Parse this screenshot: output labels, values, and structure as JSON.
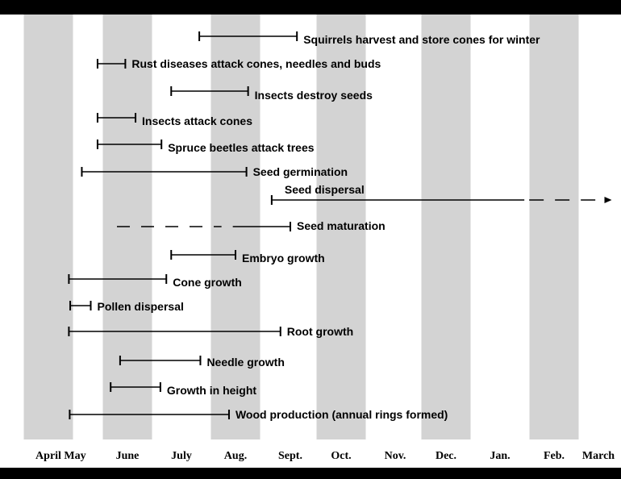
{
  "chart_data": {
    "type": "timeline",
    "title": "",
    "xlabel": "",
    "ylabel": "",
    "month_labels": [
      "April",
      "May",
      "June",
      "July",
      "Aug.",
      "Sept.",
      "Oct.",
      "Nov.",
      "Dec.",
      "Jan.",
      "Feb.",
      "March"
    ],
    "shaded_months": [
      "April",
      "June",
      "Aug.",
      "Oct.",
      "Dec.",
      "Feb."
    ],
    "colors": {
      "shade": "#d3d3d3",
      "line": "#000000",
      "text": "#000000"
    },
    "events": [
      {
        "label": "Squirrels harvest and store cones for winter",
        "start": "late July",
        "end": "late Aug.",
        "start_value": 4.33,
        "end_value": 6.13,
        "style": "solid"
      },
      {
        "label": "Rust diseases attack cones, needles and buds",
        "start": "mid May",
        "end": "late May",
        "start_value": 2.43,
        "end_value": 2.96,
        "style": "solid"
      },
      {
        "label": "Insects destroy seeds",
        "start": "early July",
        "end": "mid Aug.",
        "start_value": 3.81,
        "end_value": 5.23,
        "style": "solid"
      },
      {
        "label": "Insects attack cones",
        "start": "mid May",
        "end": "early June",
        "start_value": 2.43,
        "end_value": 3.15,
        "style": "solid"
      },
      {
        "label": "Spruce beetles attack trees",
        "start": "mid May",
        "end": "mid June",
        "start_value": 2.43,
        "end_value": 3.63,
        "style": "solid"
      },
      {
        "label": "Seed germination",
        "start": "early May",
        "end": "mid Aug.",
        "start_value": 2.13,
        "end_value": 5.2,
        "style": "solid"
      },
      {
        "label": "Seed dispersal",
        "start": "early Sept.",
        "end": "March",
        "start_value": 5.66,
        "end_value": 12.3,
        "style": "solid-then-dashed",
        "dashed_from": 10.45
      },
      {
        "label": "Seed maturation",
        "start": "late May",
        "end": "late Aug.",
        "start_value": 2.8,
        "end_value": 6.0,
        "style": "dashed-then-solid",
        "solid_from": 4.95
      },
      {
        "label": "Embryo growth",
        "start": "early July",
        "end": "early Aug.",
        "start_value": 3.81,
        "end_value": 5.0,
        "style": "solid"
      },
      {
        "label": "Cone growth",
        "start": "late April",
        "end": "mid June",
        "start_value": 1.77,
        "end_value": 3.72,
        "style": "solid"
      },
      {
        "label": "Pollen dispersal",
        "start": "late April",
        "end": "early May",
        "start_value": 1.82,
        "end_value": 2.3,
        "style": "solid"
      },
      {
        "label": "Root growth",
        "start": "late April",
        "end": "late Aug.",
        "start_value": 1.77,
        "end_value": 5.82,
        "style": "solid"
      },
      {
        "label": "Needle growth",
        "start": "late May",
        "end": "mid July",
        "start_value": 2.86,
        "end_value": 4.35,
        "style": "solid"
      },
      {
        "label": "Growth in height",
        "start": "late May",
        "end": "late June",
        "start_value": 2.68,
        "end_value": 3.61,
        "style": "solid"
      },
      {
        "label": "Wood production (annual rings formed)",
        "start": "late April",
        "end": "early Aug.",
        "start_value": 1.8,
        "end_value": 4.88,
        "style": "solid"
      }
    ]
  }
}
